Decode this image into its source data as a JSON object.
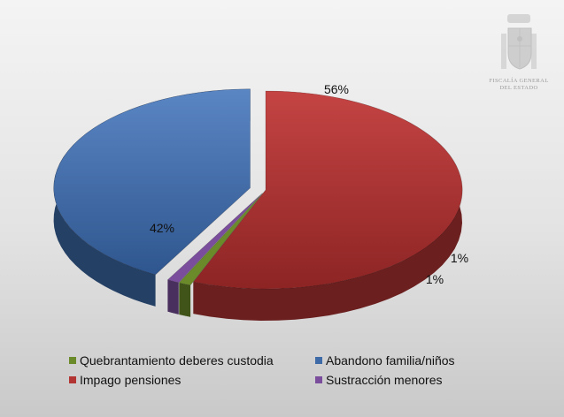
{
  "emblem": {
    "line1": "FISCALÍA GENERAL",
    "line2": "DEL ESTADO"
  },
  "chart_data": {
    "type": "pie",
    "slices": [
      {
        "name": "Impago pensiones",
        "value": 56,
        "label": "56%",
        "color": "#b23433"
      },
      {
        "name": "Quebrantamiento deberes custodia",
        "value": 1,
        "label": "1%",
        "color": "#6b8a2a"
      },
      {
        "name": "Sustracción menores",
        "value": 1,
        "label": "1%",
        "color": "#7a4e9c"
      },
      {
        "name": "Abandono familia/niños",
        "value": 42,
        "label": "42%",
        "color": "#3e6aa8"
      }
    ],
    "legend_position": "bottom",
    "legend": [
      {
        "name": "Quebrantamiento deberes custodia",
        "color": "#6b8a2a"
      },
      {
        "name": "Abandono familia/niños",
        "color": "#3e6aa8"
      },
      {
        "name": "Impago pensiones",
        "color": "#b23433"
      },
      {
        "name": "Sustracción menores",
        "color": "#7a4e9c"
      }
    ]
  }
}
